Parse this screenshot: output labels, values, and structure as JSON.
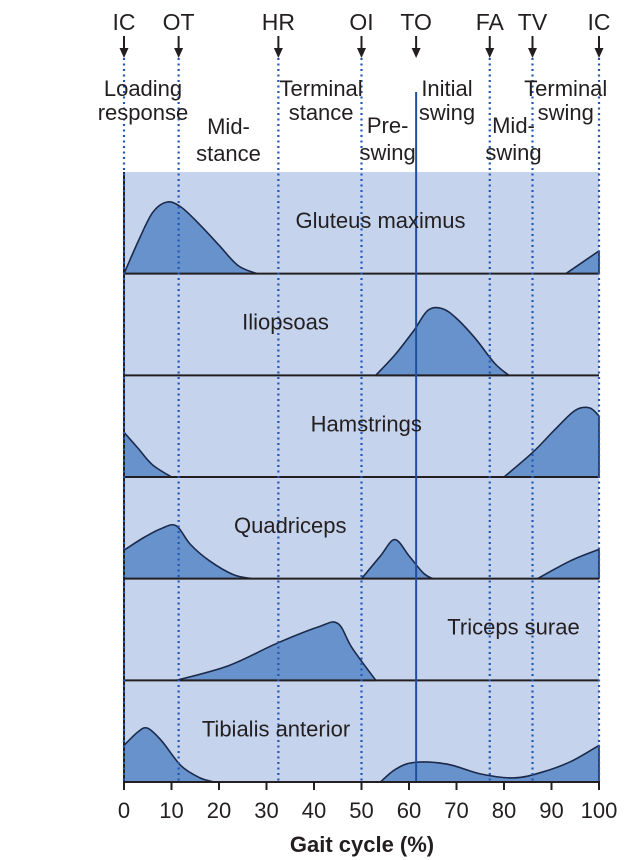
{
  "chart_data": {
    "type": "area",
    "xlabel": "Gait cycle (%)",
    "xlim": [
      0,
      100
    ],
    "x_ticks": [
      "0",
      "10",
      "20",
      "30",
      "40",
      "50",
      "60",
      "70",
      "80",
      "90",
      "100"
    ],
    "events": [
      {
        "label": "IC",
        "x": 0,
        "style": "dotted"
      },
      {
        "label": "OT",
        "x": 11.5,
        "style": "dotted"
      },
      {
        "label": "HR",
        "x": 32.5,
        "style": "dotted"
      },
      {
        "label": "OI",
        "x": 50,
        "style": "dotted"
      },
      {
        "label": "TO",
        "x": 61.5,
        "style": "solid"
      },
      {
        "label": "FA",
        "x": 77,
        "style": "dotted"
      },
      {
        "label": "TV",
        "x": 86,
        "style": "dotted"
      },
      {
        "label": "IC",
        "x": 100,
        "style": "dotted"
      }
    ],
    "phases": [
      {
        "lines": [
          "Loading",
          "response"
        ],
        "x": 4
      },
      {
        "lines": [
          "Mid-",
          "stance"
        ],
        "x": 22
      },
      {
        "lines": [
          "Terminal",
          "stance"
        ],
        "x": 41.5
      },
      {
        "lines": [
          "Pre-",
          "swing"
        ],
        "x": 55.5
      },
      {
        "lines": [
          "Initial",
          "swing"
        ],
        "x": 68
      },
      {
        "lines": [
          "Mid-",
          "swing"
        ],
        "x": 82
      },
      {
        "lines": [
          "Terminal",
          "swing"
        ],
        "x": 93
      }
    ],
    "series": [
      {
        "name": "Gluteus maximus",
        "label_x": 54,
        "segments": [
          [
            [
              0,
              0
            ],
            [
              3,
              0.4
            ],
            [
              6,
              0.75
            ],
            [
              9,
              0.88
            ],
            [
              12,
              0.82
            ],
            [
              16,
              0.6
            ],
            [
              20,
              0.35
            ],
            [
              24,
              0.1
            ],
            [
              28,
              0
            ]
          ],
          [
            [
              93,
              0
            ],
            [
              100,
              0.28
            ]
          ]
        ]
      },
      {
        "name": "Iliopsoas",
        "label_x": 34,
        "segments": [
          [
            [
              53,
              0
            ],
            [
              57,
              0.25
            ],
            [
              61,
              0.55
            ],
            [
              64,
              0.8
            ],
            [
              67,
              0.82
            ],
            [
              70,
              0.7
            ],
            [
              74,
              0.45
            ],
            [
              78,
              0.15
            ],
            [
              81,
              0
            ]
          ]
        ]
      },
      {
        "name": "Hamstrings",
        "label_x": 51,
        "segments": [
          [
            [
              0,
              0.55
            ],
            [
              3,
              0.35
            ],
            [
              6,
              0.15
            ],
            [
              10,
              0
            ]
          ],
          [
            [
              80,
              0
            ],
            [
              86,
              0.3
            ],
            [
              91,
              0.6
            ],
            [
              95,
              0.82
            ],
            [
              98,
              0.85
            ],
            [
              100,
              0.75
            ]
          ]
        ]
      },
      {
        "name": "Quadriceps",
        "label_x": 35,
        "segments": [
          [
            [
              0,
              0.35
            ],
            [
              4,
              0.5
            ],
            [
              8,
              0.62
            ],
            [
              11,
              0.65
            ],
            [
              14,
              0.42
            ],
            [
              18,
              0.22
            ],
            [
              23,
              0.05
            ],
            [
              27,
              0
            ]
          ],
          [
            [
              50,
              0
            ],
            [
              54,
              0.28
            ],
            [
              57,
              0.48
            ],
            [
              60,
              0.28
            ],
            [
              63,
              0.07
            ],
            [
              65,
              0
            ]
          ],
          [
            [
              87,
              0
            ],
            [
              94,
              0.22
            ],
            [
              100,
              0.36
            ]
          ]
        ]
      },
      {
        "name": "Triceps surae",
        "label_x": 82,
        "segments": [
          [
            [
              11,
              0
            ],
            [
              22,
              0.18
            ],
            [
              32,
              0.45
            ],
            [
              41,
              0.66
            ],
            [
              45,
              0.7
            ],
            [
              48,
              0.4
            ],
            [
              53,
              0
            ]
          ]
        ]
      },
      {
        "name": "Tibialis anterior",
        "label_x": 32,
        "segments": [
          [
            [
              0,
              0.45
            ],
            [
              3,
              0.62
            ],
            [
              5,
              0.66
            ],
            [
              8,
              0.5
            ],
            [
              12,
              0.2
            ],
            [
              16,
              0.05
            ],
            [
              19,
              0
            ]
          ],
          [
            [
              54,
              0
            ],
            [
              57,
              0.15
            ],
            [
              61,
              0.24
            ],
            [
              68,
              0.22
            ],
            [
              75,
              0.1
            ],
            [
              82,
              0.05
            ],
            [
              88,
              0.12
            ],
            [
              94,
              0.25
            ],
            [
              100,
              0.45
            ]
          ]
        ]
      }
    ]
  }
}
